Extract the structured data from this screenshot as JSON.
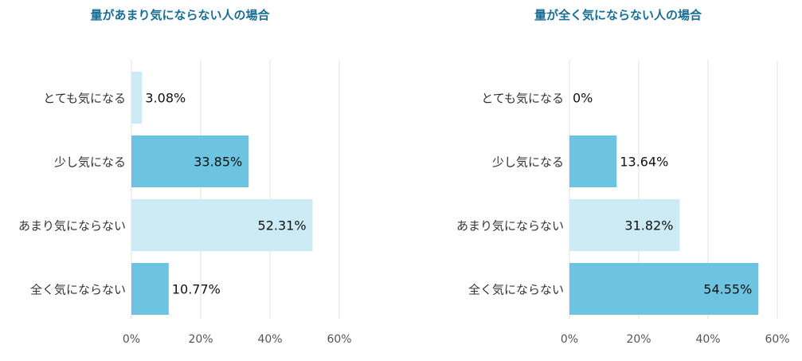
{
  "chart_data": [
    {
      "type": "bar",
      "orientation": "horizontal",
      "title": "量があまり気にならない人の場合",
      "categories": [
        "とても気になる",
        "少し気になる",
        "あまり気にならない",
        "全く気にならない"
      ],
      "values": [
        3.08,
        33.85,
        52.31,
        10.77
      ],
      "value_labels": [
        "3.08%",
        "33.85%",
        "52.31%",
        "10.77%"
      ],
      "xlim": [
        0,
        60
      ],
      "ticks": [
        "0%",
        "20%",
        "40%",
        "60%"
      ],
      "grid": true,
      "legend": "none"
    },
    {
      "type": "bar",
      "orientation": "horizontal",
      "title": "量が全く気にならない人の場合",
      "categories": [
        "とても気になる",
        "少し気になる",
        "あまり気にならない",
        "全く気にならない"
      ],
      "values": [
        0,
        13.64,
        31.82,
        54.55
      ],
      "value_labels": [
        "0%",
        "13.64%",
        "31.82%",
        "54.55%"
      ],
      "xlim": [
        0,
        60
      ],
      "ticks": [
        "0%",
        "20%",
        "40%",
        "60%"
      ],
      "grid": true,
      "legend": "none"
    }
  ],
  "colors": {
    "title": "#1a6e94",
    "bar_dark": "#6cc4e0",
    "bar_light": "#cdebf5",
    "grid": "#e2e2e2",
    "text": "#333333"
  }
}
